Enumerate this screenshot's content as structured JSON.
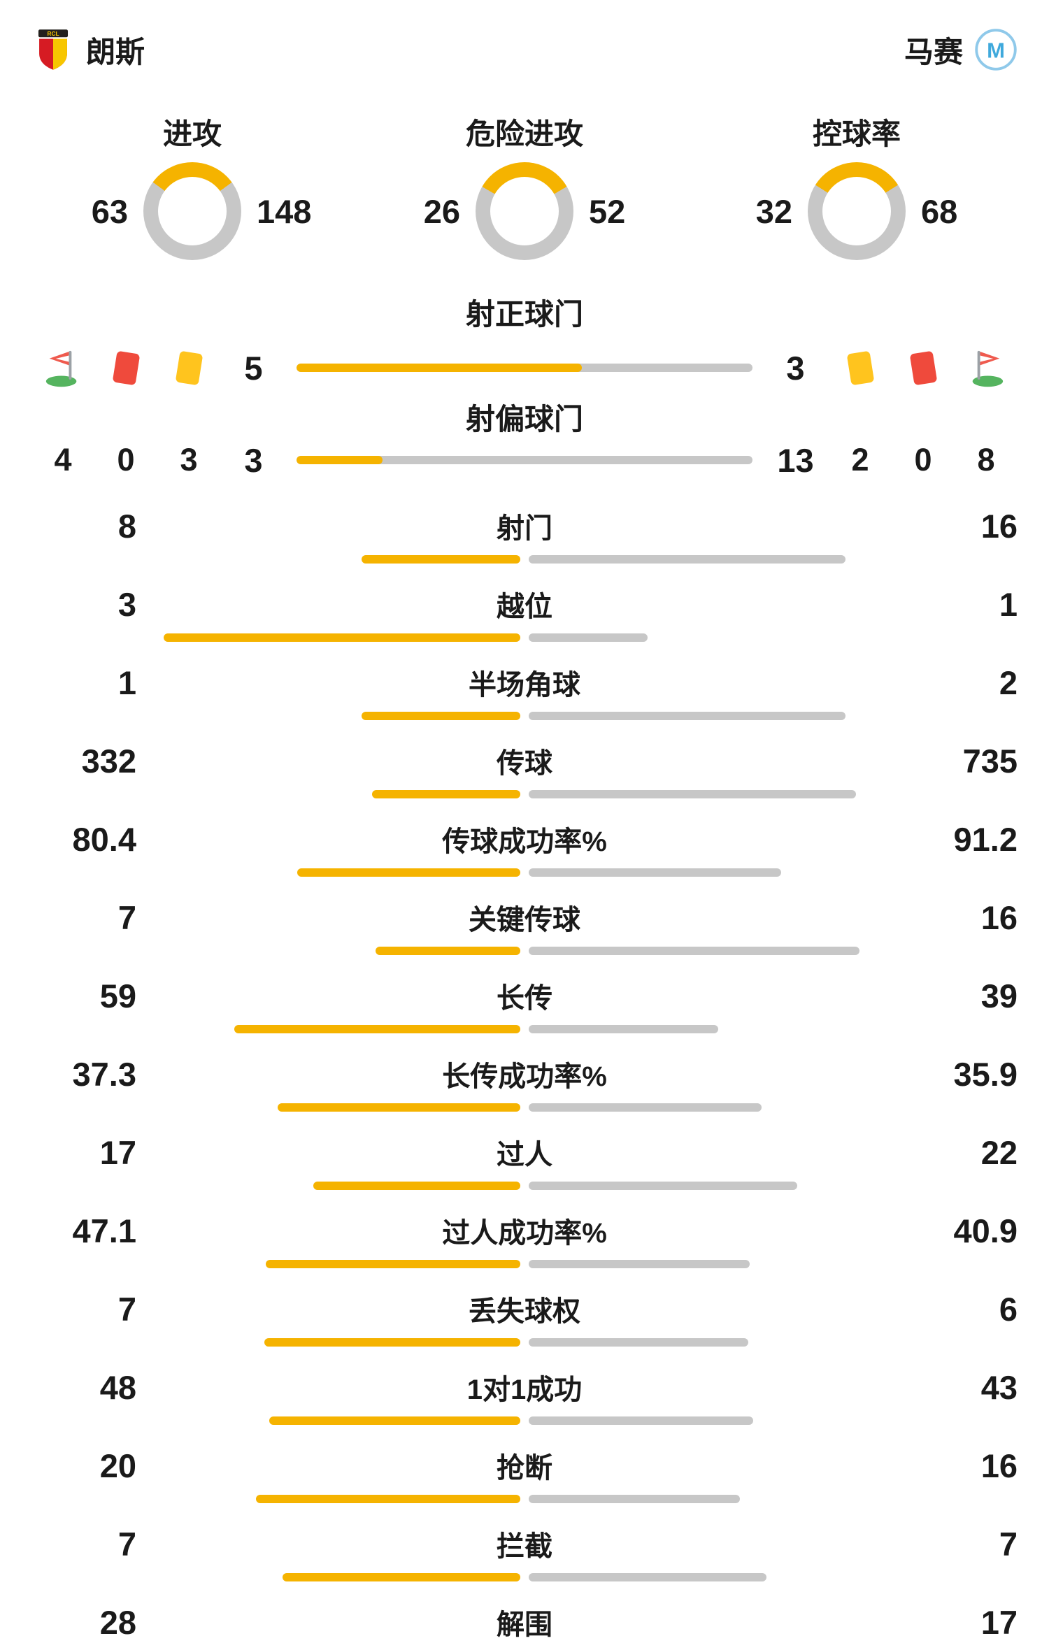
{
  "header": {
    "home_name": "朗斯",
    "away_name": "马赛"
  },
  "colors": {
    "home": "#F5B300",
    "away": "#C7C7C7"
  },
  "chart_data": {
    "type": "table",
    "teams": [
      "朗斯",
      "马赛"
    ],
    "legend_position": "none",
    "donuts": [
      {
        "label": "进攻",
        "home": 63,
        "away": 148
      },
      {
        "label": "危险进攻",
        "home": 26,
        "away": 52
      },
      {
        "label": "控球率",
        "home": 32,
        "away": 68
      }
    ],
    "discipline": {
      "home": {
        "corners": 4,
        "red_cards": 0,
        "yellow_cards": 3
      },
      "away": {
        "corners": 8,
        "red_cards": 0,
        "yellow_cards": 2
      }
    },
    "shot_bars": [
      {
        "label": "射正球门",
        "home": 5,
        "away": 3
      },
      {
        "label": "射偏球门",
        "home": 3,
        "away": 13
      }
    ],
    "stats": [
      {
        "label": "射门",
        "home": "8",
        "away": "16"
      },
      {
        "label": "越位",
        "home": "3",
        "away": "1"
      },
      {
        "label": "半场角球",
        "home": "1",
        "away": "2"
      },
      {
        "label": "传球",
        "home": "332",
        "away": "735"
      },
      {
        "label": "传球成功率%",
        "home": "80.4",
        "away": "91.2"
      },
      {
        "label": "关键传球",
        "home": "7",
        "away": "16"
      },
      {
        "label": "长传",
        "home": "59",
        "away": "39"
      },
      {
        "label": "长传成功率%",
        "home": "37.3",
        "away": "35.9"
      },
      {
        "label": "过人",
        "home": "17",
        "away": "22"
      },
      {
        "label": "过人成功率%",
        "home": "47.1",
        "away": "40.9"
      },
      {
        "label": "丢失球权",
        "home": "7",
        "away": "6"
      },
      {
        "label": "1对1成功",
        "home": "48",
        "away": "43"
      },
      {
        "label": "抢断",
        "home": "20",
        "away": "16"
      },
      {
        "label": "拦截",
        "home": "7",
        "away": "7"
      },
      {
        "label": "解围",
        "home": "28",
        "away": "17"
      }
    ]
  }
}
